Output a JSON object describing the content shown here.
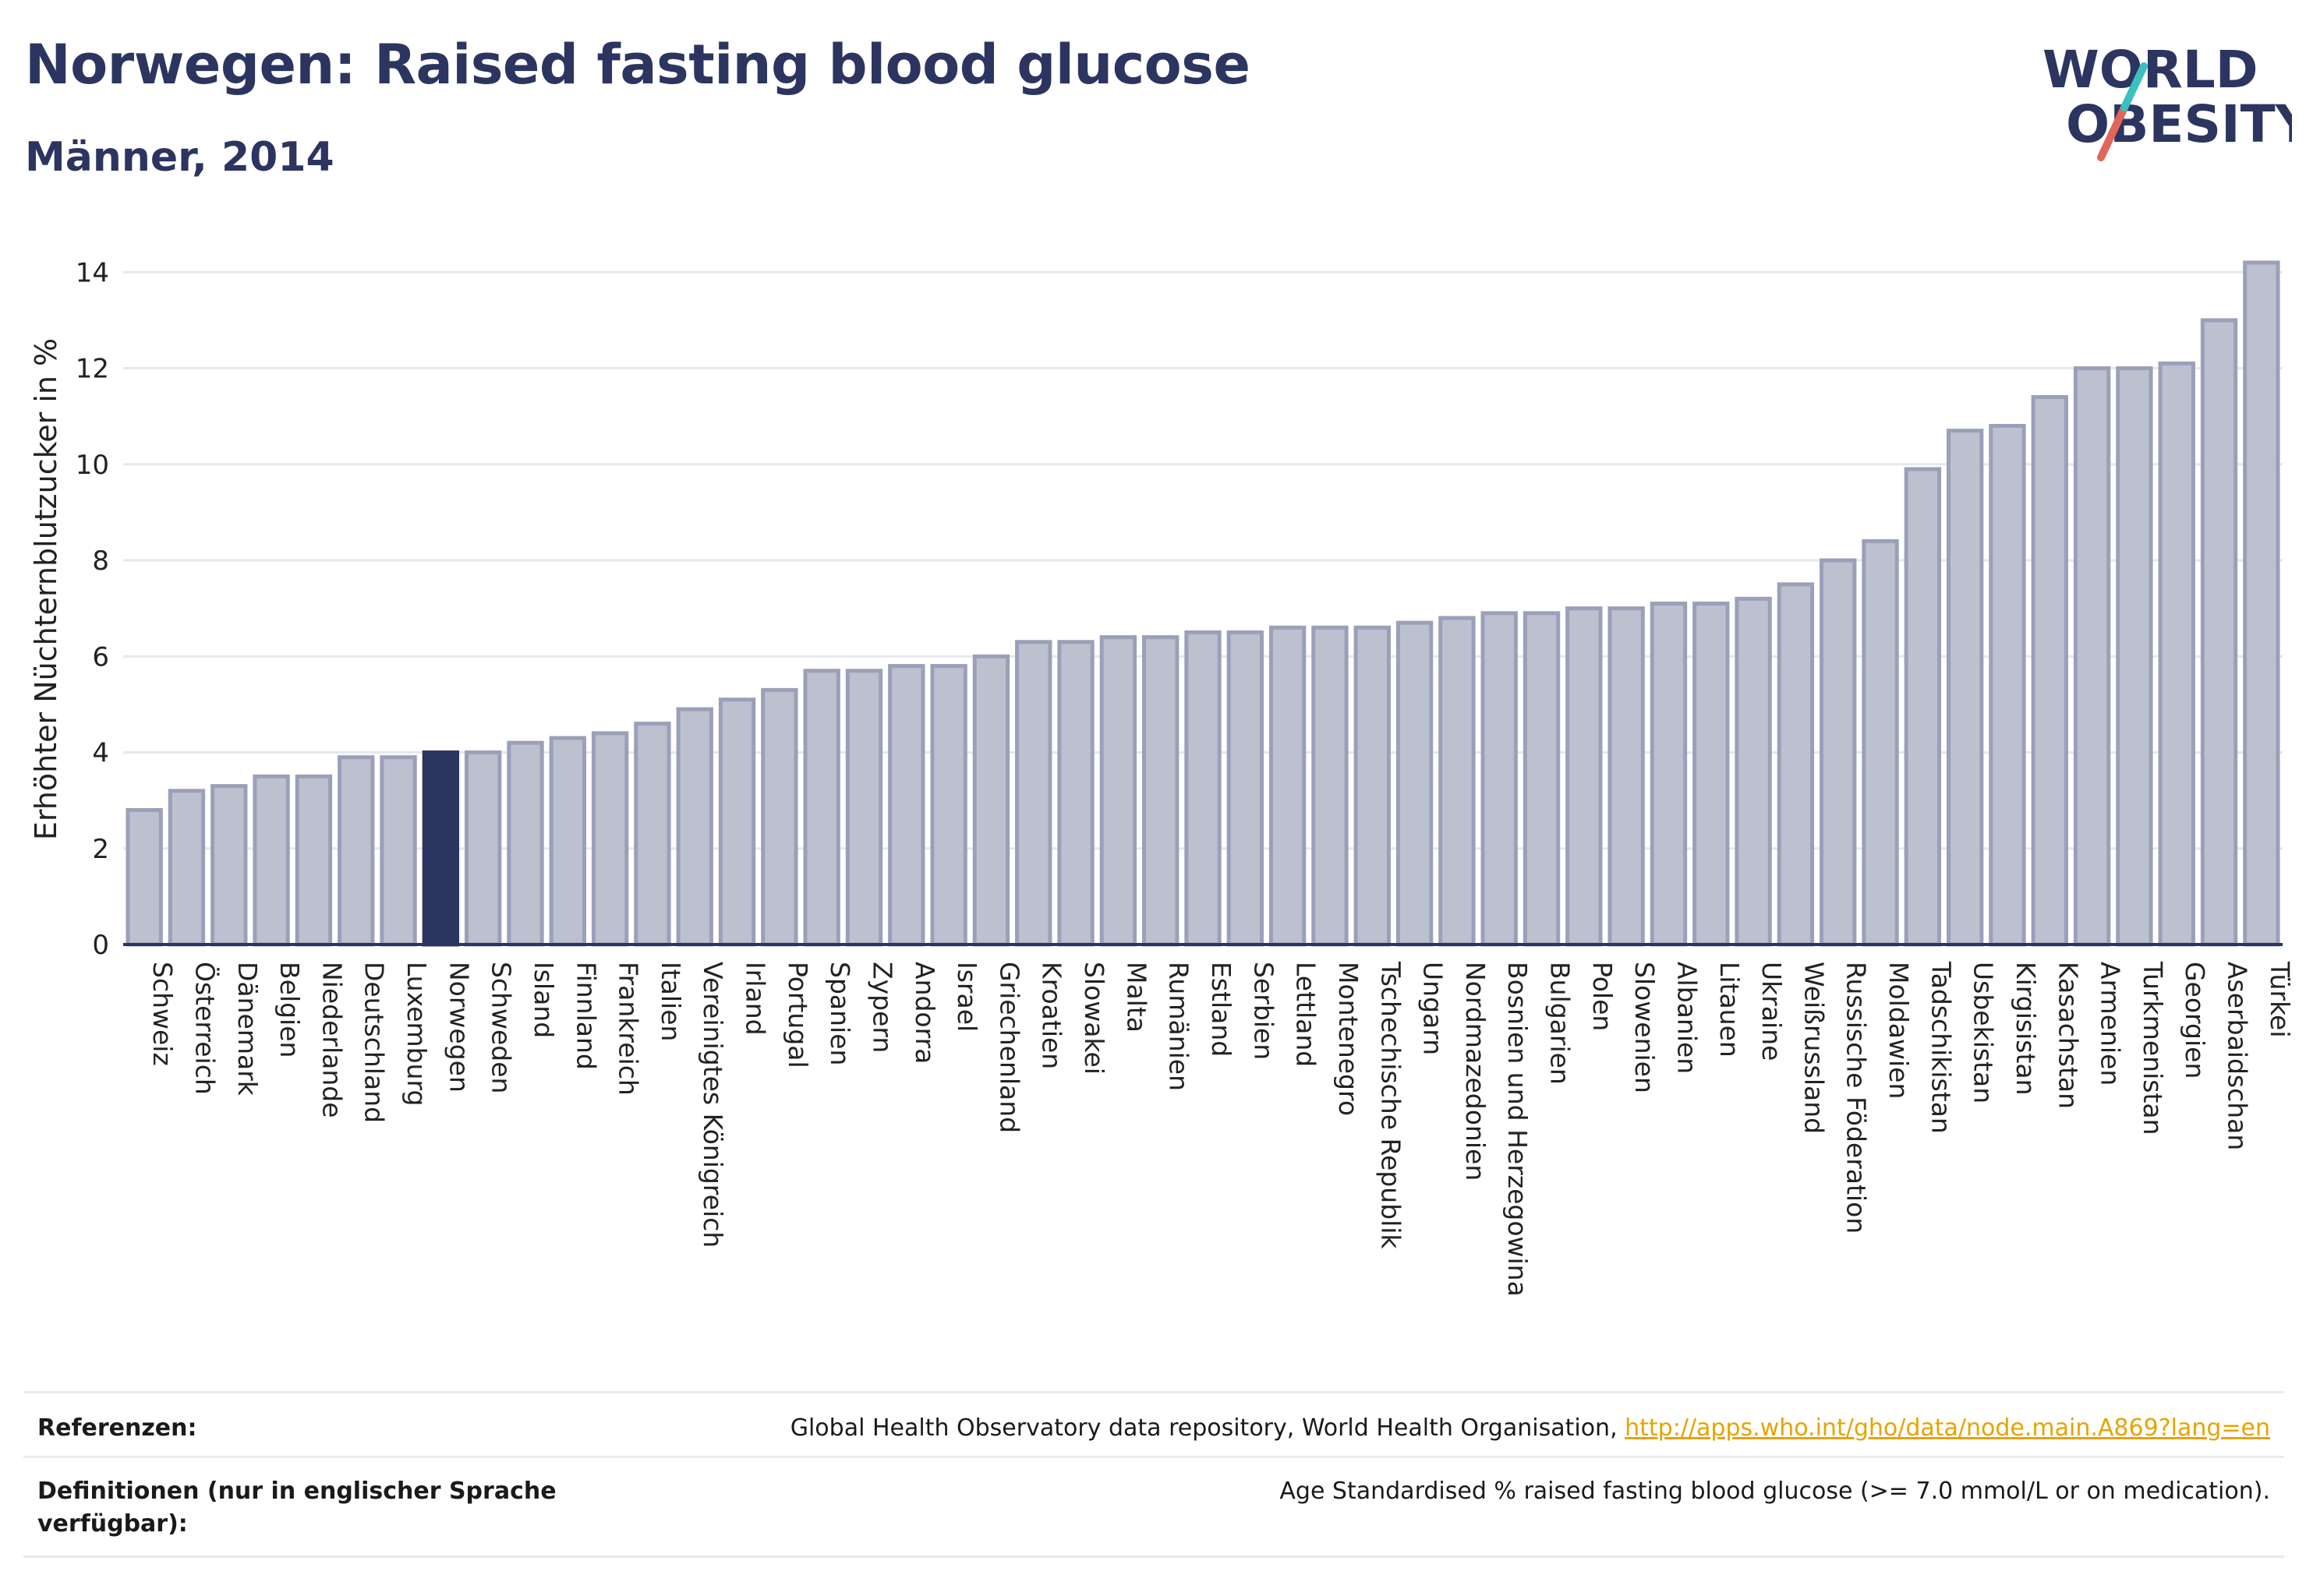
{
  "header": {
    "title": "Norwegen: Raised fasting blood glucose",
    "subtitle": "Männer, 2014"
  },
  "logo": {
    "line1": "WORLD",
    "line2": "OBESITY",
    "colors": {
      "text": "#2b3560",
      "slash_teal": "#3bbfbf",
      "slash_red": "#e0665a"
    }
  },
  "colors": {
    "bar": "#bcc0cf",
    "bar_stroke": "#9aa0b8",
    "highlight": "#2b3560",
    "axis": "#2b3560",
    "grid": "#e6e8ee"
  },
  "chart_data": {
    "type": "bar",
    "ylabel": "Erhöhter Nüchternblutzucker in %",
    "ylim": [
      0,
      14.8
    ],
    "yticks": [
      0,
      2,
      4,
      6,
      8,
      10,
      12,
      14
    ],
    "grid": true,
    "highlight": "Norwegen",
    "categories": [
      "Schweiz",
      "Österreich",
      "Dänemark",
      "Belgien",
      "Niederlande",
      "Deutschland",
      "Luxemburg",
      "Norwegen",
      "Schweden",
      "Island",
      "Finnland",
      "Frankreich",
      "Italien",
      "Vereinigtes Königreich",
      "Irland",
      "Portugal",
      "Spanien",
      "Zypern",
      "Andorra",
      "Israel",
      "Griechenland",
      "Kroatien",
      "Slowakei",
      "Malta",
      "Rumänien",
      "Estland",
      "Serbien",
      "Lettland",
      "Montenegro",
      "Tschechische Republik",
      "Ungarn",
      "Nordmazedonien",
      "Bosnien und Herzegowina",
      "Bulgarien",
      "Polen",
      "Slowenien",
      "Albanien",
      "Litauen",
      "Ukraine",
      "Weißrussland",
      "Russische Föderation",
      "Moldawien",
      "Tadschikistan",
      "Usbekistan",
      "Kirgisistan",
      "Kasachstan",
      "Armenien",
      "Turkmenistan",
      "Georgien",
      "Aserbaidschan",
      "Türkei"
    ],
    "values": [
      2.8,
      3.2,
      3.3,
      3.5,
      3.5,
      3.9,
      3.9,
      4.0,
      4.0,
      4.2,
      4.3,
      4.4,
      4.6,
      4.9,
      5.1,
      5.3,
      5.7,
      5.7,
      5.8,
      5.8,
      6.0,
      6.3,
      6.3,
      6.4,
      6.4,
      6.5,
      6.5,
      6.6,
      6.6,
      6.6,
      6.7,
      6.8,
      6.9,
      6.9,
      7.0,
      7.0,
      7.1,
      7.1,
      7.2,
      7.5,
      8.0,
      8.4,
      9.9,
      10.7,
      10.8,
      11.4,
      12.0,
      12.0,
      12.1,
      13.0,
      14.2
    ]
  },
  "footer": {
    "references_label": "Referenzen:",
    "references_text": "Global Health Observatory data repository, World Health Organisation, ",
    "references_link": "http://apps.who.int/gho/data/node.main.A869?lang=en",
    "definitions_label": "Definitionen (nur in englischer Sprache verfügbar):",
    "definitions_text": "Age Standardised % raised fasting blood glucose (>= 7.0 mmol/L or on medication)."
  }
}
